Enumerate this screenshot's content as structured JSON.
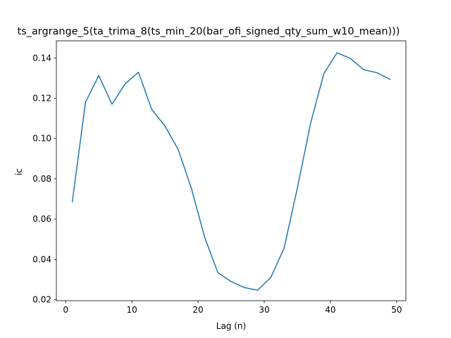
{
  "chart_data": {
    "type": "line",
    "title": "ts_argrange_5(ta_trima_8(ts_min_20(bar_ofi_signed_qty_sum_w10_mean)))",
    "xlabel": "Lag (n)",
    "ylabel": "ic",
    "xlim": [
      -1.4,
      51.4
    ],
    "ylim": [
      0.0195,
      0.1485
    ],
    "grid": false,
    "x_ticks": [
      0,
      10,
      20,
      30,
      40,
      50
    ],
    "x_tick_labels": [
      "0",
      "10",
      "20",
      "30",
      "40",
      "50"
    ],
    "y_ticks": [
      0.02,
      0.04,
      0.06,
      0.08,
      0.1,
      0.12,
      0.14
    ],
    "y_tick_labels": [
      "0.02",
      "0.04",
      "0.06",
      "0.08",
      "0.10",
      "0.12",
      "0.14"
    ],
    "series": [
      {
        "color": "#1f77b4",
        "x": [
          1,
          3,
          5,
          7,
          9,
          11,
          13,
          15,
          17,
          19,
          21,
          23,
          25,
          27,
          29,
          31,
          33,
          35,
          37,
          39,
          41,
          43,
          45,
          47,
          49
        ],
        "y": [
          0.0685,
          0.118,
          0.1313,
          0.117,
          0.1272,
          0.1329,
          0.1145,
          0.1062,
          0.0946,
          0.0752,
          0.051,
          0.0334,
          0.029,
          0.026,
          0.0247,
          0.0311,
          0.0456,
          0.0753,
          0.1075,
          0.1322,
          0.1426,
          0.1398,
          0.1342,
          0.1327,
          0.1294
        ]
      }
    ]
  }
}
